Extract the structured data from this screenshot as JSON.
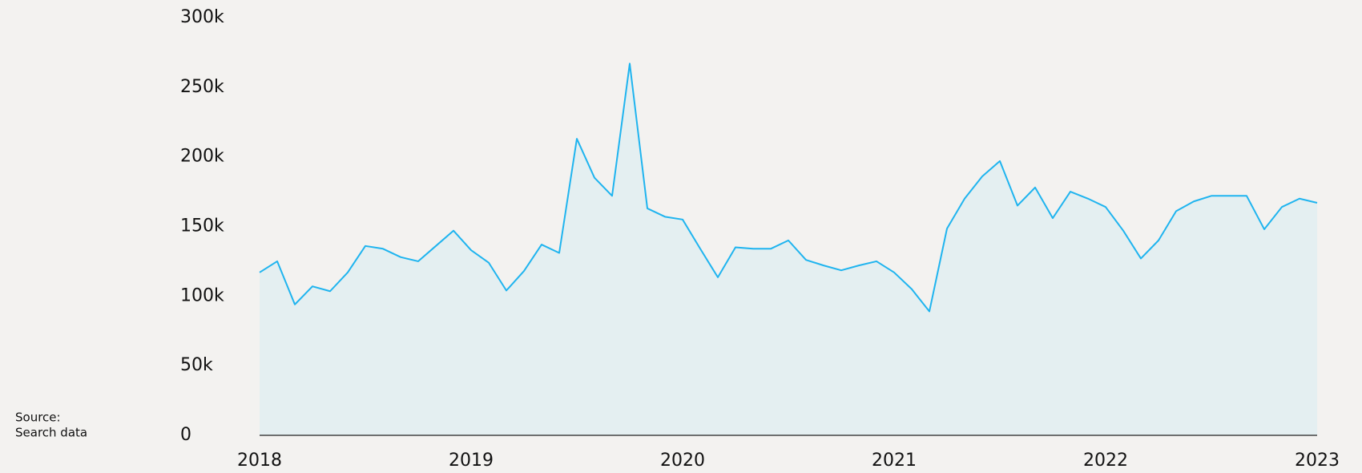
{
  "chart_data": {
    "type": "area",
    "source": [
      "Source:",
      "Search data"
    ],
    "categories": [
      "2018",
      null,
      null,
      null,
      null,
      null,
      null,
      null,
      null,
      null,
      null,
      null,
      "2019",
      null,
      null,
      null,
      null,
      null,
      null,
      null,
      null,
      null,
      null,
      null,
      "2020",
      null,
      null,
      null,
      null,
      null,
      null,
      null,
      null,
      null,
      null,
      null,
      "2021",
      null,
      null,
      null,
      null,
      null,
      null,
      null,
      null,
      null,
      null,
      null,
      "2022",
      null,
      null,
      null,
      null,
      null,
      null,
      null,
      null,
      null,
      null,
      null,
      "2023"
    ],
    "series": [
      {
        "color": "#1fb4ef",
        "fill": "#e4eff1",
        "values": [
          117000,
          125000,
          94000,
          107000,
          103500,
          117000,
          136000,
          134000,
          128000,
          125000,
          136000,
          147000,
          133000,
          124000,
          104000,
          118000,
          137000,
          131000,
          213000,
          185000,
          172000,
          267000,
          163000,
          157000,
          155000,
          134000,
          113500,
          135000,
          134000,
          134000,
          140000,
          126000,
          122000,
          118500,
          122000,
          125000,
          117000,
          105000,
          89000,
          148500,
          170000,
          186000,
          197000,
          165000,
          178000,
          156000,
          175000,
          170000,
          164000,
          147000,
          127000,
          140000,
          161000,
          168000,
          172000,
          172000,
          172000,
          148000,
          164000,
          170000,
          167000
        ]
      }
    ],
    "ylim": [
      0,
      300000
    ],
    "yticks": [
      0,
      {
        "value": 50000,
        "label": "50k"
      },
      {
        "value": 100000,
        "label": "100k"
      },
      {
        "value": 150000,
        "label": "150k"
      },
      {
        "value": 200000,
        "label": "200k"
      },
      {
        "value": 250000,
        "label": "250k"
      },
      {
        "value": 300000,
        "label": "300k"
      }
    ],
    "grid": false
  }
}
